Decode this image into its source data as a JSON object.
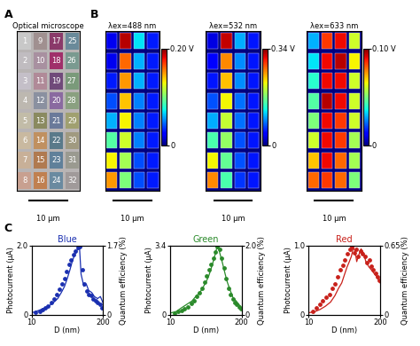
{
  "panel_labels": [
    "A",
    "B",
    "C"
  ],
  "optical_microscope": {
    "title": "Optical microscope",
    "scale_bar": "10 µm",
    "labels": [
      [
        "1",
        "9",
        "17",
        "25"
      ],
      [
        "2",
        "10",
        "18",
        "26"
      ],
      [
        "3",
        "11",
        "19",
        "27"
      ],
      [
        "4",
        "12",
        "20",
        "28"
      ],
      [
        "5",
        "13",
        "21",
        "29"
      ],
      [
        "6",
        "14",
        "22",
        "30"
      ],
      [
        "7",
        "15",
        "23",
        "31"
      ],
      [
        "8",
        "16",
        "24",
        "32"
      ]
    ],
    "colors": [
      [
        "#c8c8c8",
        "#a09090",
        "#8a3a6a",
        "#6a8a9a"
      ],
      [
        "#c0bcc0",
        "#a890a0",
        "#a0306a",
        "#7a9a90"
      ],
      [
        "#c4bfc8",
        "#b08a98",
        "#704a7a",
        "#7a9a7a"
      ],
      [
        "#bdb8b0",
        "#8a90a0",
        "#8a6aa0",
        "#8aa080"
      ],
      [
        "#c2bca8",
        "#8a8a60",
        "#6a7a9a",
        "#a0a070"
      ],
      [
        "#c9b9a0",
        "#c09060",
        "#5a7a8a",
        "#a09a80"
      ],
      [
        "#c8b098",
        "#b07a50",
        "#60809a",
        "#9a9a90"
      ],
      [
        "#c8a090",
        "#c08050",
        "#6a8aa0",
        "#a09a9a"
      ]
    ]
  },
  "photovoltage_maps": [
    {
      "title": "λex=488 nm",
      "scale_bar": "10 µm",
      "color_range": [
        0,
        0.2
      ],
      "color_ticks": [
        0,
        {
          "value": 0.2,
          "label": "0.20 V"
        }
      ],
      "cells": [
        [
          0.02,
          0.19,
          0.07,
          0.03
        ],
        [
          0.02,
          0.16,
          0.06,
          0.03
        ],
        [
          0.03,
          0.15,
          0.06,
          0.03
        ],
        [
          0.04,
          0.14,
          0.05,
          0.03
        ],
        [
          0.06,
          0.13,
          0.05,
          0.03
        ],
        [
          0.09,
          0.12,
          0.05,
          0.03
        ],
        [
          0.13,
          0.11,
          0.04,
          0.03
        ],
        [
          0.15,
          0.1,
          0.04,
          0.03
        ]
      ]
    },
    {
      "title": "λex=532 nm",
      "scale_bar": "10 µm",
      "color_range": [
        0,
        0.34
      ],
      "color_ticks": [
        0,
        {
          "value": 0.34,
          "label": "0.34 V"
        }
      ],
      "cells": [
        [
          0.03,
          0.32,
          0.1,
          0.05
        ],
        [
          0.04,
          0.26,
          0.09,
          0.05
        ],
        [
          0.05,
          0.24,
          0.09,
          0.05
        ],
        [
          0.07,
          0.22,
          0.08,
          0.05
        ],
        [
          0.1,
          0.2,
          0.08,
          0.05
        ],
        [
          0.15,
          0.18,
          0.07,
          0.05
        ],
        [
          0.22,
          0.16,
          0.07,
          0.05
        ],
        [
          0.26,
          0.15,
          0.06,
          0.05
        ]
      ]
    },
    {
      "title": "λex=633 nm",
      "scale_bar": "10 µm",
      "color_range": [
        0,
        0.1
      ],
      "color_ticks": [
        0,
        {
          "value": 0.1,
          "label": "0.10 V"
        }
      ],
      "cells": [
        [
          0.03,
          0.085,
          0.09,
          0.06
        ],
        [
          0.035,
          0.09,
          0.095,
          0.065
        ],
        [
          0.04,
          0.09,
          0.09,
          0.06
        ],
        [
          0.045,
          0.095,
          0.09,
          0.06
        ],
        [
          0.05,
          0.09,
          0.085,
          0.06
        ],
        [
          0.06,
          0.09,
          0.085,
          0.055
        ],
        [
          0.07,
          0.09,
          0.08,
          0.055
        ],
        [
          0.08,
          0.085,
          0.08,
          0.05
        ]
      ]
    }
  ],
  "chart_data": [
    {
      "type": "scatter",
      "title": "Blue",
      "color": "#1a2fb0",
      "x_label": "D (nm)",
      "log": "x",
      "xlim": [
        10,
        200
      ],
      "xticks": [
        10,
        200
      ],
      "ylim": [
        0,
        2.0
      ],
      "yticks": [
        0,
        2.0
      ],
      "y2lim": [
        0,
        1.7
      ],
      "y2ticks": [
        0,
        1.7
      ],
      "y_label": "Photocurrent (µA)",
      "y2_label": "Quantum efficiency (%)",
      "series": [
        {
          "name": "Photocurrent",
          "type": "scatter",
          "marker": "o",
          "color": "#1a2fb0",
          "x": [
            12,
            14,
            16,
            18,
            20,
            23,
            26,
            29,
            32,
            36,
            40,
            44,
            48,
            53,
            58,
            63,
            69,
            76,
            84,
            92,
            101,
            111,
            122,
            134,
            147,
            161,
            177,
            195
          ],
          "values": [
            0.08,
            0.1,
            0.15,
            0.2,
            0.25,
            0.35,
            0.45,
            0.6,
            0.75,
            0.9,
            1.05,
            1.25,
            1.45,
            1.6,
            1.75,
            1.85,
            1.95,
            1.98,
            1.3,
            0.9,
            0.7,
            0.6,
            0.55,
            0.45,
            0.4,
            0.35,
            0.3,
            0.2
          ]
        },
        {
          "name": "Quantum efficiency",
          "type": "line",
          "axis": "y2",
          "line_style": "solid",
          "color": "#1a2fb0",
          "x": [
            10,
            13,
            16,
            20,
            25,
            30,
            35,
            40,
            45,
            50,
            55,
            60,
            65,
            70,
            75,
            80,
            90,
            100,
            110,
            125,
            140,
            160,
            180,
            200
          ],
          "values": [
            0.05,
            0.1,
            0.15,
            0.2,
            0.3,
            0.4,
            0.55,
            0.7,
            0.9,
            1.1,
            1.3,
            1.45,
            1.55,
            1.62,
            1.65,
            1.0,
            0.7,
            0.75,
            0.6,
            0.55,
            0.45,
            0.4,
            0.45,
            0.3
          ]
        }
      ]
    },
    {
      "type": "scatter",
      "title": "Green",
      "color": "#2a8a2a",
      "x_label": "D (nm)",
      "log": "x",
      "xlim": [
        10,
        200
      ],
      "xticks": [
        10,
        200
      ],
      "ylim": [
        0,
        3.4
      ],
      "yticks": [
        0,
        3.4
      ],
      "y2lim": [
        0,
        2.0
      ],
      "y2ticks": [
        0,
        2.0
      ],
      "y_label": "Photocurrent (µA)",
      "y2_label": "Quantum efficiency (%)",
      "series": [
        {
          "name": "Photocurrent",
          "type": "scatter",
          "marker": "o",
          "color": "#2a8a2a",
          "x": [
            12,
            14,
            16,
            18,
            21,
            24,
            27,
            30,
            34,
            38,
            42,
            46,
            51,
            56,
            61,
            67,
            73,
            80,
            88,
            96,
            105,
            115,
            126,
            138,
            151,
            165,
            180,
            195
          ],
          "values": [
            0.1,
            0.15,
            0.2,
            0.3,
            0.4,
            0.55,
            0.7,
            0.9,
            1.1,
            1.3,
            1.6,
            1.9,
            2.2,
            2.5,
            2.8,
            3.1,
            3.35,
            3.2,
            2.8,
            2.3,
            1.8,
            1.3,
            1.0,
            0.8,
            0.6,
            0.5,
            0.4,
            0.3
          ]
        },
        {
          "name": "Quantum efficiency",
          "type": "line",
          "axis": "y2",
          "line_style": "solid",
          "color": "#2a8a2a",
          "x": [
            10,
            13,
            16,
            20,
            25,
            30,
            35,
            40,
            45,
            50,
            55,
            60,
            65,
            70,
            75,
            80,
            90,
            100,
            110,
            125,
            140,
            160,
            180,
            200
          ],
          "values": [
            0.05,
            0.1,
            0.2,
            0.3,
            0.4,
            0.55,
            0.65,
            0.8,
            0.95,
            1.1,
            1.3,
            1.5,
            1.7,
            1.9,
            1.98,
            1.8,
            1.5,
            1.2,
            0.95,
            0.7,
            0.5,
            0.4,
            0.3,
            0.2
          ]
        }
      ]
    },
    {
      "type": "scatter",
      "title": "Red",
      "color": "#c8201a",
      "x_label": "D (nm)",
      "log": "x",
      "xlim": [
        10,
        200
      ],
      "xticks": [
        10,
        200
      ],
      "ylim": [
        0,
        1.0
      ],
      "yticks": [
        0,
        1.0
      ],
      "y2lim": [
        0,
        0.65
      ],
      "y2ticks": [
        0,
        0.65
      ],
      "y_label": "Photocurrent (µA)",
      "y2_label": "Quantum efficiency (%)",
      "series": [
        {
          "name": "Photocurrent",
          "type": "scatter",
          "marker": "o",
          "color": "#c8201a",
          "x": [
            12,
            14,
            16,
            18,
            21,
            24,
            27,
            30,
            34,
            38,
            42,
            46,
            51,
            56,
            61,
            67,
            73,
            80,
            88,
            96,
            105,
            115,
            126,
            138,
            151,
            165,
            180,
            195
          ],
          "values": [
            0.05,
            0.1,
            0.15,
            0.2,
            0.25,
            0.3,
            0.38,
            0.45,
            0.55,
            0.65,
            0.72,
            0.8,
            0.88,
            0.95,
            0.98,
            0.9,
            0.95,
            0.85,
            0.92,
            0.88,
            0.85,
            0.75,
            0.8,
            0.7,
            0.65,
            0.6,
            0.55,
            0.5
          ]
        },
        {
          "name": "Quantum efficiency",
          "type": "line",
          "axis": "y2",
          "line_style": "solid",
          "color": "#c8201a",
          "x": [
            10,
            13,
            16,
            20,
            25,
            30,
            35,
            40,
            45,
            50,
            55,
            60,
            65,
            70,
            75,
            80,
            90,
            100,
            110,
            125,
            140,
            160,
            180,
            200
          ],
          "values": [
            0.02,
            0.03,
            0.05,
            0.08,
            0.12,
            0.18,
            0.25,
            0.3,
            0.38,
            0.45,
            0.5,
            0.55,
            0.63,
            0.6,
            0.5,
            0.55,
            0.62,
            0.58,
            0.5,
            0.45,
            0.42,
            0.38,
            0.35,
            0.3
          ]
        }
      ]
    }
  ]
}
